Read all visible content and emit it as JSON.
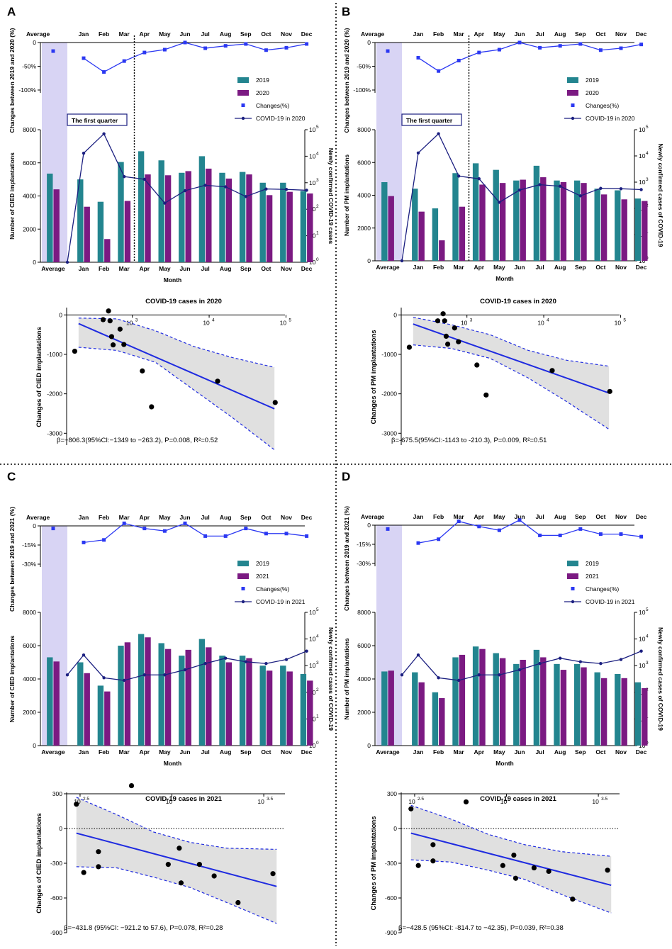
{
  "chart_data": [
    {
      "panel": "A",
      "type": "combo-bar-line",
      "year": "2020",
      "ylabel_changes": "Changes between 2019 and 2020 (%)",
      "changes_ticks": [
        "0",
        "-50%",
        "-100%"
      ],
      "changes_range": [
        -100,
        0
      ],
      "ylabel_bars": "Number of CIED implantations",
      "y2label": "Newly confirmed COVID-19 cases",
      "xlabel": "Month",
      "bar_ticks": [
        "0",
        "2000",
        "4000",
        "6000",
        "8000"
      ],
      "bar_ylim": [
        0,
        8000
      ],
      "log_ticks": [
        "10",
        "10",
        "10",
        "10",
        "10",
        "10"
      ],
      "log_exps": [
        "0",
        "1",
        "2",
        "3",
        "4",
        "5"
      ],
      "categories": [
        "Average",
        "Jan",
        "Feb",
        "Mar",
        "Apr",
        "May",
        "Jun",
        "Jul",
        "Aug",
        "Sep",
        "Oct",
        "Nov",
        "Dec"
      ],
      "legend": [
        "2019",
        "2020",
        "Changes(%)",
        "COVID-19 in 2020"
      ],
      "annotation": "The first quarter",
      "series_2019": [
        5350,
        5000,
        3650,
        6050,
        6700,
        6150,
        5400,
        6400,
        5400,
        5450,
        4800,
        4800,
        4300
      ],
      "series_year": [
        4400,
        3350,
        1400,
        3700,
        5300,
        5250,
        5500,
        5650,
        5050,
        5300,
        4050,
        4250,
        4150
      ],
      "changes": [
        -18,
        -33,
        -62,
        -39,
        -21,
        -15,
        0,
        -12,
        -7,
        -3,
        -16,
        -11,
        -3
      ],
      "covid": [
        1,
        13000,
        70000,
        1700,
        1350,
        170,
        500,
        800,
        700,
        300,
        580,
        560,
        520
      ]
    },
    {
      "panel": "B",
      "type": "combo-bar-line",
      "year": "2020",
      "ylabel_changes": "Changes between 2019 and 2020 (%)",
      "changes_ticks": [
        "0",
        "-50%",
        "-100%"
      ],
      "changes_range": [
        -100,
        0
      ],
      "ylabel_bars": "Number of PM implantations",
      "y2label": "Newly confirmed cases of COVID-19",
      "xlabel": "Month",
      "bar_ticks": [
        "0",
        "2000",
        "4000",
        "6000",
        "8000"
      ],
      "bar_ylim": [
        0,
        8000
      ],
      "log_ticks": [
        "10",
        "10",
        "10",
        "10",
        "10",
        "10"
      ],
      "log_exps": [
        "0",
        "1",
        "2",
        "3",
        "4",
        "5"
      ],
      "categories": [
        "Average",
        "Jan",
        "Feb",
        "Mar",
        "Apr",
        "May",
        "Jun",
        "Jul",
        "Aug",
        "Sep",
        "Oct",
        "Nov",
        "Dec"
      ],
      "legend": [
        "2019",
        "2020",
        "Changes(%)",
        "COVID-19 in 2020"
      ],
      "annotation": "The first quarter",
      "series_2019": [
        4800,
        4400,
        3200,
        5350,
        5950,
        5550,
        4900,
        5800,
        4900,
        4900,
        4400,
        4300,
        3800
      ],
      "series_year": [
        3950,
        3000,
        1250,
        3300,
        4650,
        4750,
        4950,
        5100,
        4800,
        4750,
        4050,
        3750,
        3650
      ],
      "changes": [
        -18,
        -32,
        -60,
        -38,
        -21,
        -15,
        0,
        -11,
        -7,
        -3,
        -16,
        -12,
        -4
      ],
      "covid": [
        1,
        13000,
        70000,
        1700,
        1350,
        170,
        500,
        800,
        700,
        300,
        580,
        560,
        520
      ]
    },
    {
      "panel": "C",
      "type": "combo-bar-line",
      "year": "2021",
      "ylabel_changes": "Changes between 2019 and 2021 (%)",
      "changes_ticks": [
        "0",
        "-15%",
        "-30%"
      ],
      "changes_range": [
        -30,
        0
      ],
      "ylabel_bars": "Number of CIED implantations",
      "y2label": "Newly confirmed cases of COVID-19",
      "xlabel": "Month",
      "bar_ticks": [
        "0",
        "2000",
        "4000",
        "6000",
        "8000"
      ],
      "bar_ylim": [
        0,
        8000
      ],
      "log_ticks": [
        "10",
        "10",
        "10",
        "10",
        "10",
        "10"
      ],
      "log_exps": [
        "0",
        "1",
        "2",
        "3",
        "4",
        "5"
      ],
      "categories": [
        "Average",
        "Jan",
        "Feb",
        "Mar",
        "Apr",
        "May",
        "Jun",
        "Jul",
        "Aug",
        "Sep",
        "Oct",
        "Nov",
        "Dec"
      ],
      "legend": [
        "2019",
        "2021",
        "Changes(%)",
        "COVID-19 in 2021"
      ],
      "series_2019": [
        5300,
        5000,
        3600,
        6000,
        6700,
        6150,
        5400,
        6400,
        5400,
        5400,
        4800,
        4800,
        4300
      ],
      "series_year": [
        5050,
        4350,
        3250,
        6200,
        6500,
        5800,
        5750,
        5900,
        5000,
        5250,
        4500,
        4450,
        3900
      ],
      "changes": [
        -2,
        -13,
        -11,
        2,
        -2,
        -4,
        2,
        -8,
        -8,
        -2,
        -6,
        -6,
        -8
      ],
      "covid": [
        450,
        2500,
        350,
        280,
        450,
        450,
        700,
        1200,
        1900,
        1400,
        1200,
        1700,
        3500
      ]
    },
    {
      "panel": "D",
      "type": "combo-bar-line",
      "year": "2021",
      "ylabel_changes": "Changes between 2019 and 2021 (%)",
      "changes_ticks": [
        "0",
        "-15%",
        "-30%"
      ],
      "changes_range": [
        -30,
        0
      ],
      "ylabel_bars": "Number of PM implantations",
      "y2label": "Newly confirmed cases of COVID-19",
      "xlabel": "Month",
      "bar_ticks": [
        "0",
        "2000",
        "4000",
        "6000",
        "8000"
      ],
      "bar_ylim": [
        0,
        8000
      ],
      "log_ticks": [
        "10",
        "10",
        "10",
        "10",
        "10",
        "10"
      ],
      "log_exps": [
        "0",
        "1",
        "2",
        "3",
        "4",
        "5"
      ],
      "categories": [
        "Average",
        "Jan",
        "Feb",
        "Mar",
        "Apr",
        "May",
        "Jun",
        "Jul",
        "Aug",
        "Sep",
        "Oct",
        "Nov",
        "Dec"
      ],
      "legend": [
        "2019",
        "2021",
        "Changes(%)",
        "COVID-19 in 2021"
      ],
      "series_2019": [
        4450,
        4400,
        3200,
        5300,
        5950,
        5550,
        4900,
        5750,
        4900,
        4900,
        4400,
        4300,
        3800
      ],
      "series_year": [
        4500,
        3800,
        2850,
        5450,
        5800,
        5250,
        5150,
        5300,
        4550,
        4700,
        4050,
        4050,
        3450
      ],
      "changes": [
        -3,
        -14,
        -11,
        3,
        -1,
        -4,
        4,
        -8,
        -8,
        -3,
        -7,
        -7,
        -9
      ],
      "covid": [
        450,
        2500,
        350,
        280,
        450,
        450,
        700,
        1200,
        1900,
        1400,
        1200,
        1700,
        3500
      ]
    },
    {
      "panel": "A",
      "type": "scatter-regression",
      "title": "COVID-19 cases in 2020",
      "ylabel": "Changes of CIED implantations",
      "y_ticks": [
        "0",
        "-1000",
        "-2000",
        "-3000"
      ],
      "ylim": [
        -3300,
        150
      ],
      "x_ticks": [
        "10",
        "10",
        "10"
      ],
      "x_exps": [
        "3",
        "4",
        "5"
      ],
      "x_log_range": [
        2.2,
        4.95
      ],
      "points": [
        [
          2.25,
          -920
        ],
        [
          2.62,
          -120
        ],
        [
          2.69,
          100
        ],
        [
          2.71,
          -150
        ],
        [
          2.73,
          -550
        ],
        [
          2.75,
          -760
        ],
        [
          2.84,
          -360
        ],
        [
          2.89,
          -750
        ],
        [
          3.13,
          -1420
        ],
        [
          3.25,
          -2330
        ],
        [
          4.11,
          -1680
        ],
        [
          4.86,
          -2220
        ]
      ],
      "fit_line": [
        [
          2.3,
          -220
        ],
        [
          4.85,
          -2380
        ]
      ],
      "ci_upper": [
        [
          2.3,
          -80
        ],
        [
          2.8,
          -100
        ],
        [
          3.3,
          -400
        ],
        [
          3.8,
          -800
        ],
        [
          4.3,
          -1080
        ],
        [
          4.85,
          -1330
        ]
      ],
      "ci_lower": [
        [
          2.3,
          -820
        ],
        [
          2.8,
          -900
        ],
        [
          3.3,
          -1200
        ],
        [
          3.8,
          -1900
        ],
        [
          4.3,
          -2600
        ],
        [
          4.85,
          -3420
        ]
      ],
      "stats": "β=−806.3(95%CI:−1349 to −263.2), P=0.008, R²=0.52"
    },
    {
      "panel": "B",
      "type": "scatter-regression",
      "title": "COVID-19 cases in 2020",
      "ylabel": "Changes of PM implantations",
      "y_ticks": [
        "0",
        "-1000",
        "-2000",
        "-3000"
      ],
      "ylim": [
        -3300,
        150
      ],
      "x_ticks": [
        "10",
        "10",
        "10"
      ],
      "x_exps": [
        "3",
        "4",
        "5"
      ],
      "x_log_range": [
        2.2,
        4.95
      ],
      "points": [
        [
          2.25,
          -820
        ],
        [
          2.62,
          -150
        ],
        [
          2.69,
          30
        ],
        [
          2.71,
          -150
        ],
        [
          2.73,
          -540
        ],
        [
          2.75,
          -740
        ],
        [
          2.84,
          -330
        ],
        [
          2.89,
          -680
        ],
        [
          3.13,
          -1270
        ],
        [
          3.25,
          -2030
        ],
        [
          4.11,
          -1410
        ],
        [
          4.86,
          -1940
        ]
      ],
      "fit_line": [
        [
          2.3,
          -230
        ],
        [
          4.85,
          -1980
        ]
      ],
      "ci_upper": [
        [
          2.3,
          -60
        ],
        [
          2.8,
          -250
        ],
        [
          3.3,
          -500
        ],
        [
          3.8,
          -900
        ],
        [
          4.3,
          -1150
        ],
        [
          4.85,
          -1300
        ]
      ],
      "ci_lower": [
        [
          2.3,
          -760
        ],
        [
          2.8,
          -850
        ],
        [
          3.3,
          -1100
        ],
        [
          3.8,
          -1600
        ],
        [
          4.3,
          -2200
        ],
        [
          4.85,
          -2900
        ]
      ],
      "stats": "β=-675.5(95%CI:-1143 to -210.3), P=0.009, R²=0.51"
    },
    {
      "panel": "C",
      "type": "scatter-regression",
      "title": "COVID-19 cases in 2021",
      "ylabel": "Changes of CIED implantations",
      "y_ticks": [
        "300",
        "0",
        "-300",
        "-600",
        "-900"
      ],
      "ylim": [
        -900,
        300
      ],
      "x_ticks": [
        "10",
        "10",
        "10"
      ],
      "x_exps": [
        "2.5",
        "",
        "3.5"
      ],
      "x_log_range": [
        2.45,
        3.6
      ],
      "points": [
        [
          2.48,
          210
        ],
        [
          2.52,
          -380
        ],
        [
          2.6,
          -200
        ],
        [
          2.6,
          -330
        ],
        [
          2.78,
          370
        ],
        [
          2.98,
          -310
        ],
        [
          3.04,
          -170
        ],
        [
          3.05,
          -470
        ],
        [
          3.15,
          -310
        ],
        [
          3.23,
          -410
        ],
        [
          3.36,
          -640
        ],
        [
          3.55,
          -390
        ]
      ],
      "fit_line": [
        [
          2.48,
          -40
        ],
        [
          3.57,
          -500
        ]
      ],
      "ci_upper": [
        [
          2.48,
          270
        ],
        [
          2.7,
          120
        ],
        [
          2.9,
          -30
        ],
        [
          3.1,
          -120
        ],
        [
          3.3,
          -170
        ],
        [
          3.57,
          -180
        ]
      ],
      "ci_lower": [
        [
          2.48,
          -330
        ],
        [
          2.7,
          -340
        ],
        [
          2.9,
          -420
        ],
        [
          3.1,
          -510
        ],
        [
          3.3,
          -640
        ],
        [
          3.57,
          -820
        ]
      ],
      "stats": "β=−431.8 (95%CI: −921.2 to 57.6), P=0.078, R²=0.28"
    },
    {
      "panel": "D",
      "type": "scatter-regression",
      "title": "COVID-19 cases in 2021",
      "ylabel": "Changes of PM implantations",
      "y_ticks": [
        "300",
        "0",
        "-300",
        "-600",
        "-900"
      ],
      "ylim": [
        -900,
        300
      ],
      "x_ticks": [
        "10",
        "10",
        "10"
      ],
      "x_exps": [
        "2.5",
        "",
        "3.5"
      ],
      "x_log_range": [
        2.45,
        3.6
      ],
      "points": [
        [
          2.48,
          170
        ],
        [
          2.52,
          -320
        ],
        [
          2.6,
          -140
        ],
        [
          2.6,
          -280
        ],
        [
          2.78,
          230
        ],
        [
          2.98,
          -320
        ],
        [
          3.04,
          -230
        ],
        [
          3.05,
          -430
        ],
        [
          3.15,
          -340
        ],
        [
          3.23,
          -370
        ],
        [
          3.36,
          -610
        ],
        [
          3.55,
          -360
        ]
      ],
      "fit_line": [
        [
          2.48,
          -40
        ],
        [
          3.57,
          -490
        ]
      ],
      "ci_upper": [
        [
          2.48,
          200
        ],
        [
          2.7,
          80
        ],
        [
          2.9,
          -50
        ],
        [
          3.1,
          -140
        ],
        [
          3.3,
          -200
        ],
        [
          3.57,
          -240
        ]
      ],
      "ci_lower": [
        [
          2.48,
          -270
        ],
        [
          2.7,
          -290
        ],
        [
          2.9,
          -360
        ],
        [
          3.1,
          -440
        ],
        [
          3.3,
          -570
        ],
        [
          3.57,
          -730
        ]
      ],
      "stats": "β=−428.5 (95%CI: -814.7 to −42.35), P=0.039, R²=0.38"
    }
  ],
  "colors": {
    "c2019": "#23858F",
    "cyear": "#7B1A82",
    "changes": "#2B38F2",
    "covid": "#1B1F80",
    "fit": "#1F2BE0",
    "shade": "#E0E0E0",
    "avg": "#D8D4F4"
  }
}
